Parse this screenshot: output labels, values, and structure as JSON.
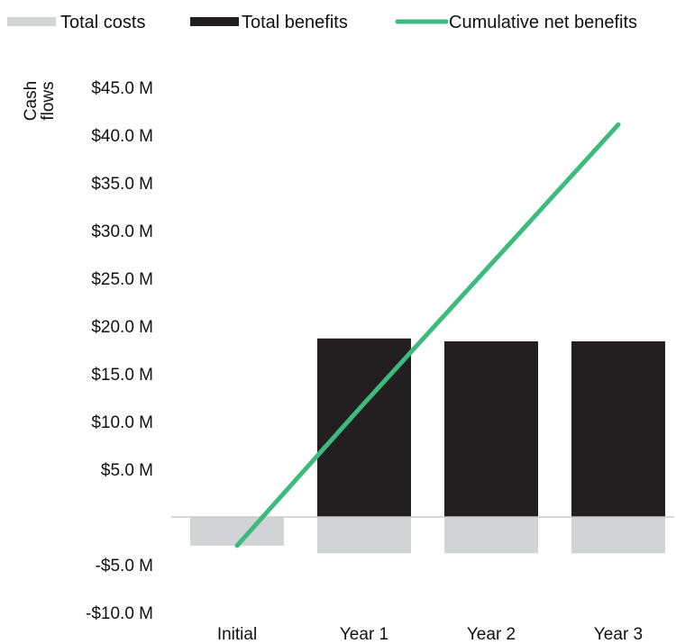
{
  "chart_data": {
    "type": "bar",
    "categories": [
      "Initial",
      "Year 1",
      "Year 2",
      "Year 3"
    ],
    "series": [
      {
        "name": "Total costs",
        "kind": "bar",
        "color": "#d2d3d5",
        "values": [
          -3.0,
          -3.8,
          -3.8,
          -3.8
        ]
      },
      {
        "name": "Total benefits",
        "kind": "bar",
        "color": "#231f20",
        "values": [
          0,
          18.7,
          18.4,
          18.4
        ]
      },
      {
        "name": "Cumulative net benefits",
        "kind": "line",
        "color": "#3dbb7f",
        "values": [
          -3.0,
          11.9,
          26.5,
          41.1
        ]
      }
    ],
    "ylabel_lines": [
      "Cash",
      "flows"
    ],
    "ylim": [
      -10,
      45
    ],
    "y_ticks": [
      45,
      40,
      35,
      30,
      25,
      20,
      15,
      10,
      5,
      -5,
      -10
    ],
    "y_tick_labels": [
      "$45.0 M",
      "$40.0 M",
      "$35.0 M",
      "$30.0 M",
      "$25.0 M",
      "$20.0 M",
      "$15.0 M",
      "$10.0 M",
      "$5.0 M",
      "-$5.0 M",
      "-$10.0 M"
    ],
    "legend_position": "top",
    "grid": false
  }
}
